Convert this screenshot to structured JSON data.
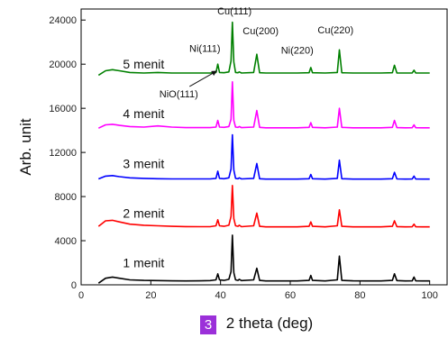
{
  "chart_data": {
    "type": "line",
    "title": "",
    "xlabel": "2 theta (deg)",
    "ylabel": "Arb. unit",
    "xlim": [
      0,
      105
    ],
    "ylim": [
      0,
      25000
    ],
    "x_ticks": [
      0,
      20,
      40,
      60,
      80,
      100
    ],
    "y_ticks": [
      0,
      4000,
      8000,
      12000,
      16000,
      20000,
      24000
    ],
    "grid": false,
    "legend": "none",
    "series": [
      {
        "name": "1 menit",
        "color": "#000000",
        "offset": 0,
        "x": [
          5,
          7,
          9,
          11,
          14,
          18,
          22,
          26,
          30,
          34,
          37,
          38.7,
          39.2,
          39.7,
          41,
          42.4,
          43.0,
          43.4,
          43.8,
          44.3,
          45.0,
          45.4,
          46,
          49.5,
          50.4,
          51.2,
          53,
          58,
          62,
          65.4,
          65.9,
          66.4,
          70,
          73.5,
          74.1,
          74.8,
          78,
          82,
          86,
          89.3,
          89.9,
          90.6,
          93,
          95,
          95.5,
          96,
          98,
          100
        ],
        "y": [
          150,
          600,
          700,
          600,
          450,
          400,
          380,
          360,
          350,
          360,
          380,
          450,
          1000,
          450,
          400,
          500,
          1200,
          4500,
          1100,
          450,
          400,
          500,
          380,
          450,
          1500,
          400,
          350,
          350,
          350,
          400,
          850,
          400,
          350,
          450,
          2600,
          400,
          360,
          350,
          350,
          400,
          1000,
          380,
          350,
          360,
          700,
          360,
          350,
          350
        ]
      },
      {
        "name": "2 menit",
        "color": "#ff0000",
        "offset": 4500,
        "x": [
          5,
          7,
          9,
          11,
          14,
          18,
          22,
          26,
          30,
          34,
          37,
          38.7,
          39.2,
          39.7,
          41,
          42.4,
          43.0,
          43.4,
          43.8,
          44.3,
          45.0,
          45.4,
          46,
          49.5,
          50.4,
          51.2,
          53,
          58,
          62,
          65.4,
          65.9,
          66.4,
          70,
          73.5,
          74.1,
          74.8,
          78,
          82,
          86,
          89.3,
          89.9,
          90.6,
          93,
          95,
          95.5,
          96,
          98,
          100
        ],
        "y": [
          5300,
          5800,
          5850,
          5700,
          5500,
          5400,
          5350,
          5300,
          5280,
          5270,
          5270,
          5350,
          5900,
          5350,
          5300,
          5400,
          6200,
          9000,
          6000,
          5350,
          5300,
          5400,
          5270,
          5350,
          6500,
          5300,
          5250,
          5250,
          5250,
          5300,
          5700,
          5300,
          5250,
          5350,
          6800,
          5300,
          5250,
          5250,
          5250,
          5300,
          5800,
          5280,
          5250,
          5260,
          5500,
          5260,
          5250,
          5250
        ]
      },
      {
        "name": "3 menit",
        "color": "#0000ff",
        "offset": 9000,
        "x": [
          5,
          7,
          9,
          11,
          14,
          18,
          22,
          26,
          30,
          34,
          37,
          38.7,
          39.2,
          39.7,
          41,
          42.4,
          43.0,
          43.4,
          43.8,
          44.3,
          45.0,
          45.4,
          46,
          49.5,
          50.4,
          51.2,
          53,
          58,
          62,
          65.4,
          65.9,
          66.4,
          70,
          73.5,
          74.1,
          74.8,
          78,
          82,
          86,
          89.3,
          89.9,
          90.6,
          93,
          95,
          95.5,
          96,
          98,
          100
        ],
        "y": [
          9600,
          9850,
          9900,
          9800,
          9700,
          9650,
          9620,
          9600,
          9600,
          9600,
          9600,
          9650,
          10300,
          9650,
          9620,
          9700,
          10500,
          13600,
          10400,
          9650,
          9620,
          9700,
          9600,
          9650,
          11000,
          9620,
          9580,
          9580,
          9580,
          9620,
          10000,
          9620,
          9580,
          9650,
          11300,
          9620,
          9580,
          9580,
          9580,
          9620,
          10200,
          9600,
          9580,
          9590,
          9850,
          9590,
          9580,
          9580
        ]
      },
      {
        "name": "4 menit",
        "color": "#ff00ff",
        "offset": 13500,
        "x": [
          5,
          7,
          9,
          11,
          14,
          18,
          22,
          26,
          30,
          34,
          37,
          38.7,
          39.2,
          39.7,
          41,
          42.4,
          43.0,
          43.4,
          43.8,
          44.3,
          45.0,
          45.4,
          46,
          49.5,
          50.4,
          51.2,
          53,
          58,
          62,
          65.4,
          65.9,
          66.4,
          70,
          73.5,
          74.1,
          74.8,
          78,
          82,
          86,
          89.3,
          89.9,
          90.6,
          93,
          95,
          95.5,
          96,
          98,
          100
        ],
        "y": [
          14200,
          14500,
          14550,
          14450,
          14350,
          14300,
          14400,
          14300,
          14250,
          14250,
          14250,
          14300,
          14900,
          14300,
          14270,
          14350,
          15000,
          18400,
          14900,
          14300,
          14270,
          14350,
          14250,
          14300,
          15800,
          14270,
          14230,
          14230,
          14230,
          14270,
          14700,
          14270,
          14230,
          14300,
          16000,
          14270,
          14230,
          14230,
          14230,
          14270,
          14900,
          14250,
          14230,
          14240,
          14500,
          14240,
          14230,
          14230
        ]
      },
      {
        "name": "5 menit",
        "color": "#008000",
        "offset": 18000,
        "x": [
          5,
          7,
          9,
          11,
          14,
          18,
          22,
          26,
          30,
          34,
          37,
          38.7,
          39.2,
          39.7,
          41,
          42.4,
          43.0,
          43.4,
          43.8,
          44.3,
          45.0,
          45.4,
          46,
          49.5,
          50.4,
          51.2,
          53,
          58,
          62,
          65.4,
          65.9,
          66.4,
          70,
          73.5,
          74.1,
          74.8,
          78,
          82,
          86,
          89.3,
          89.9,
          90.6,
          93,
          95,
          95.5,
          96,
          98,
          100
        ],
        "y": [
          19000,
          19400,
          19500,
          19400,
          19250,
          19200,
          19250,
          19200,
          19200,
          19200,
          19200,
          19250,
          20000,
          19250,
          19220,
          19300,
          20300,
          23800,
          20200,
          19250,
          19220,
          19300,
          19200,
          19250,
          20900,
          19220,
          19200,
          19200,
          19200,
          19220,
          19700,
          19220,
          19200,
          19250,
          21300,
          19220,
          19200,
          19200,
          19200,
          19220,
          19900,
          19200,
          19200,
          19210,
          19450,
          19210,
          19200,
          19200
        ]
      }
    ],
    "annotations": [
      {
        "text": "Cu(111)",
        "x": 44,
        "y": 24500
      },
      {
        "text": "Ni(111)",
        "x": 35.5,
        "y": 21100
      },
      {
        "text": "Cu(200)",
        "x": 51.5,
        "y": 22700
      },
      {
        "text": "Ni(220)",
        "x": 62,
        "y": 20950
      },
      {
        "text": "Cu(220)",
        "x": 73,
        "y": 22800
      },
      {
        "text": "NiO(111)",
        "x": 28,
        "y": 17000,
        "arrow_to": [
          39,
          19400
        ]
      }
    ]
  },
  "badge": "3"
}
